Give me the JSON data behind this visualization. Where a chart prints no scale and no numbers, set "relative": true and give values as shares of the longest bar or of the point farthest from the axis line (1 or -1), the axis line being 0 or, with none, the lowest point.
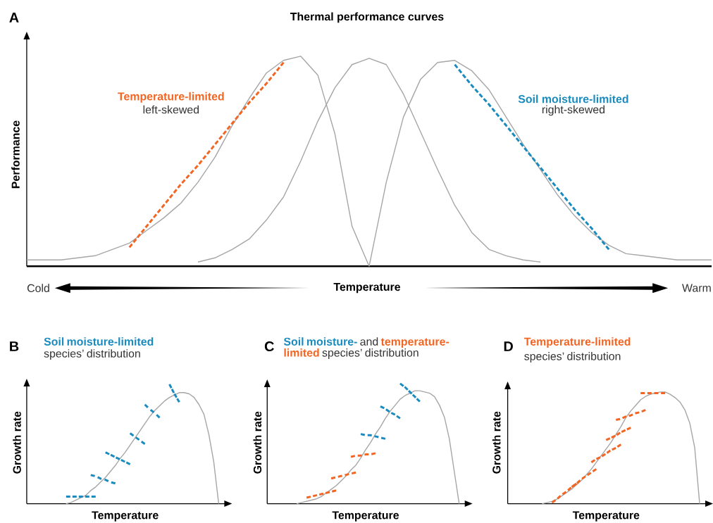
{
  "chart_data": [
    {
      "type": "line",
      "relative": true,
      "title": "Thermal performance curves",
      "xlabel": "Temperature",
      "ylabel": "Performance",
      "annotations": [
        "A",
        "Cold",
        "Warm",
        "left-skewed",
        "right-skewed"
      ],
      "categories": [
        null,
        null,
        null,
        null,
        null,
        null,
        null,
        null,
        null,
        null,
        null,
        null,
        null,
        null,
        null,
        null,
        null,
        null,
        null,
        null,
        null,
        null,
        null,
        null,
        null,
        null,
        null,
        null,
        null,
        null,
        null,
        null,
        null,
        null,
        null,
        null,
        null,
        null,
        null,
        null,
        null
      ],
      "series": [
        {
          "color": "#a6a6a6",
          "values": [
            0.03,
            0.03,
            0.03,
            0.04,
            0.05,
            0.08,
            0.11,
            0.17,
            0.23,
            0.3,
            0.4,
            0.52,
            0.67,
            0.8,
            0.92,
            0.98,
            1.0,
            0.91,
            0.63,
            0.19,
            0,
            null,
            null,
            null,
            null,
            null,
            null,
            null,
            null,
            null,
            null,
            null,
            null,
            null,
            null,
            null,
            null,
            null,
            null,
            null,
            null
          ]
        },
        {
          "color": "#a6a6a6",
          "values": [
            null,
            null,
            null,
            null,
            null,
            null,
            null,
            null,
            null,
            null,
            0.02,
            0.04,
            0.08,
            0.13,
            0.22,
            0.33,
            0.5,
            0.69,
            0.85,
            0.96,
            0.99,
            0.96,
            0.82,
            0.64,
            0.46,
            0.29,
            0.16,
            0.08,
            0.05,
            0.03,
            0.02,
            null,
            null,
            null,
            null,
            null,
            null,
            null,
            null,
            null,
            null
          ]
        },
        {
          "color": "#a6a6a6",
          "values": [
            null,
            null,
            null,
            null,
            null,
            null,
            null,
            null,
            null,
            null,
            null,
            null,
            null,
            null,
            null,
            null,
            null,
            null,
            null,
            null,
            0,
            0.4,
            0.71,
            0.89,
            0.97,
            0.98,
            0.93,
            0.84,
            0.71,
            0.58,
            0.46,
            0.34,
            0.24,
            0.16,
            0.1,
            0.06,
            0.05,
            0.04,
            0.03,
            0.03,
            0.03
          ]
        },
        {
          "name": "Temperature-limited",
          "color": "#f26522",
          "line_style": "dashed",
          "values": [
            null,
            null,
            null,
            null,
            null,
            null,
            0.09,
            0.19,
            0.29,
            0.39,
            0.48,
            0.58,
            0.68,
            0.78,
            0.87,
            0.97,
            null,
            null,
            null,
            null,
            null,
            null,
            null,
            null,
            null,
            null,
            null,
            null,
            null,
            null,
            null,
            null,
            null,
            null,
            null,
            null,
            null,
            null,
            null,
            null,
            null
          ]
        },
        {
          "name": "Soil moisture-limited",
          "color": "#1a8bbf",
          "line_style": "dashed",
          "values": [
            null,
            null,
            null,
            null,
            null,
            null,
            null,
            null,
            null,
            null,
            null,
            null,
            null,
            null,
            null,
            null,
            null,
            null,
            null,
            null,
            null,
            null,
            null,
            null,
            null,
            0.96,
            0.86,
            0.77,
            0.67,
            0.57,
            0.47,
            0.37,
            0.27,
            0.18,
            0.08,
            null,
            null,
            null,
            null,
            null,
            null
          ]
        }
      ]
    },
    {
      "type": "line",
      "relative": true,
      "subtitle": "species’ distribution",
      "xlabel": "Temperature",
      "ylabel": "Growth rate",
      "annotations": [
        "B"
      ],
      "categories": [
        null,
        null,
        null,
        null,
        null,
        null,
        null,
        null,
        null,
        null,
        null,
        null,
        null,
        null,
        null,
        null,
        null,
        null,
        null,
        null,
        null,
        null,
        null,
        null,
        null,
        null,
        null,
        null,
        null,
        null,
        null,
        null,
        null,
        null,
        null,
        null,
        null,
        null,
        null,
        null,
        null
      ],
      "series": [
        {
          "color": "#a6a6a6",
          "values": [
            null,
            null,
            null,
            null,
            null,
            null,
            null,
            null,
            0,
            0.01,
            0.03,
            0.05,
            0.07,
            0.11,
            0.14,
            0.18,
            0.22,
            0.27,
            0.32,
            0.38,
            0.43,
            0.49,
            0.55,
            0.61,
            0.67,
            0.73,
            0.78,
            0.82,
            0.86,
            0.89,
            0.91,
            0.93,
            0.93,
            0.92,
            0.89,
            0.83,
            0.75,
            0.58,
            0.35,
            0,
            null
          ]
        },
        {
          "name": "Soil moisture-limited",
          "color": "#1a8bbf",
          "line_style": "dashed",
          "values": [
            null,
            null,
            null,
            null,
            null,
            null,
            null,
            null,
            0.06,
            0.06,
            0.06,
            0.06,
            0.06,
            0.06,
            0.06,
            null,
            null,
            null,
            null,
            null,
            null,
            null,
            null,
            null,
            null,
            null,
            null,
            null,
            null,
            null,
            null,
            null,
            null,
            null,
            null,
            null,
            null,
            null,
            null,
            null,
            null
          ]
        },
        {
          "color": "#1a8bbf",
          "line_style": "dashed",
          "values": [
            null,
            null,
            null,
            null,
            null,
            null,
            null,
            null,
            null,
            null,
            null,
            null,
            null,
            0.24,
            0.23,
            0.21,
            0.2,
            0.18,
            0.17,
            null,
            null,
            null,
            null,
            null,
            null,
            null,
            null,
            null,
            null,
            null,
            null,
            null,
            null,
            null,
            null,
            null,
            null,
            null,
            null,
            null,
            null
          ]
        },
        {
          "color": "#1a8bbf",
          "line_style": "dashed",
          "values": [
            null,
            null,
            null,
            null,
            null,
            null,
            null,
            null,
            null,
            null,
            null,
            null,
            null,
            null,
            null,
            null,
            0.43,
            0.41,
            0.39,
            0.37,
            0.35,
            0.33,
            null,
            null,
            null,
            null,
            null,
            null,
            null,
            null,
            null,
            null,
            null,
            null,
            null,
            null,
            null,
            null,
            null,
            null,
            null
          ]
        },
        {
          "color": "#1a8bbf",
          "line_style": "dashed",
          "values": [
            null,
            null,
            null,
            null,
            null,
            null,
            null,
            null,
            null,
            null,
            null,
            null,
            null,
            null,
            null,
            null,
            null,
            null,
            null,
            null,
            null,
            0.59,
            0.56,
            0.53,
            0.5,
            null,
            null,
            null,
            null,
            null,
            null,
            null,
            null,
            null,
            null,
            null,
            null,
            null,
            null,
            null,
            null
          ]
        },
        {
          "color": "#1a8bbf",
          "line_style": "dashed",
          "values": [
            null,
            null,
            null,
            null,
            null,
            null,
            null,
            null,
            null,
            null,
            null,
            null,
            null,
            null,
            null,
            null,
            null,
            null,
            null,
            null,
            null,
            null,
            null,
            null,
            0.83,
            0.79,
            0.76,
            0.72,
            null,
            null,
            null,
            null,
            null,
            null,
            null,
            null,
            null,
            null,
            null,
            null,
            null
          ]
        },
        {
          "color": "#1a8bbf",
          "line_style": "dashed",
          "values": [
            null,
            null,
            null,
            null,
            null,
            null,
            null,
            null,
            null,
            null,
            null,
            null,
            null,
            null,
            null,
            null,
            null,
            null,
            null,
            null,
            null,
            null,
            null,
            null,
            null,
            null,
            null,
            null,
            null,
            1.0,
            0.92,
            0.85,
            null,
            null,
            null,
            null,
            null,
            null,
            null,
            null,
            null
          ]
        }
      ]
    },
    {
      "type": "line",
      "relative": true,
      "subtitle": "species’ distribution",
      "xlabel": "Temperature",
      "ylabel": "Growth rate",
      "annotations": [
        "C",
        "and"
      ],
      "categories": [
        null,
        null,
        null,
        null,
        null,
        null,
        null,
        null,
        null,
        null,
        null,
        null,
        null,
        null,
        null,
        null,
        null,
        null,
        null,
        null,
        null,
        null,
        null,
        null,
        null,
        null,
        null,
        null,
        null,
        null,
        null,
        null,
        null,
        null,
        null,
        null,
        null,
        null,
        null,
        null,
        null
      ],
      "series": [
        {
          "color": "#a6a6a6",
          "values": [
            null,
            null,
            null,
            null,
            null,
            null,
            0,
            0.01,
            0.02,
            0.03,
            0.04,
            0.06,
            0.09,
            0.12,
            0.15,
            0.19,
            0.23,
            0.28,
            0.32,
            0.38,
            0.45,
            0.51,
            0.58,
            0.64,
            0.71,
            0.77,
            0.82,
            0.87,
            0.9,
            0.92,
            0.94,
            0.94,
            0.93,
            0.92,
            0.89,
            0.82,
            0.72,
            0.54,
            0.27,
            0,
            null
          ]
        },
        {
          "name": "Soil moisture-",
          "color": "#1a8bbf",
          "line_style": "dashed",
          "values": [
            null,
            null,
            null,
            null,
            null,
            null,
            null,
            null,
            null,
            null,
            null,
            null,
            null,
            null,
            null,
            null,
            null,
            null,
            null,
            0.58,
            0.57,
            0.57,
            0.56,
            0.55,
            0.54,
            null,
            null,
            null,
            null,
            null,
            null,
            null,
            null,
            null,
            null,
            null,
            null,
            null,
            null,
            null,
            null
          ]
        },
        {
          "color": "#1a8bbf",
          "line_style": "dashed",
          "values": [
            null,
            null,
            null,
            null,
            null,
            null,
            null,
            null,
            null,
            null,
            null,
            null,
            null,
            null,
            null,
            null,
            null,
            null,
            null,
            null,
            null,
            null,
            null,
            0.81,
            0.79,
            0.76,
            0.74,
            0.71,
            null,
            null,
            null,
            null,
            null,
            null,
            null,
            null,
            null,
            null,
            null,
            null,
            null
          ]
        },
        {
          "color": "#1a8bbf",
          "line_style": "dashed",
          "values": [
            null,
            null,
            null,
            null,
            null,
            null,
            null,
            null,
            null,
            null,
            null,
            null,
            null,
            null,
            null,
            null,
            null,
            null,
            null,
            null,
            null,
            null,
            null,
            null,
            null,
            null,
            null,
            1.0,
            0.97,
            0.93,
            0.89,
            0.85,
            null,
            null,
            null,
            null,
            null,
            null,
            null,
            null,
            null
          ]
        },
        {
          "name": "temperature-limited",
          "color": "#f26522",
          "line_style": "dashed",
          "values": [
            null,
            null,
            null,
            null,
            null,
            null,
            null,
            null,
            0.05,
            0.06,
            0.07,
            0.08,
            0.09,
            0.1,
            0.11,
            null,
            null,
            null,
            null,
            null,
            null,
            null,
            null,
            null,
            null,
            null,
            null,
            null,
            null,
            null,
            null,
            null,
            null,
            null,
            null,
            null,
            null,
            null,
            null,
            null,
            null
          ]
        },
        {
          "color": "#f26522",
          "line_style": "dashed",
          "values": [
            null,
            null,
            null,
            null,
            null,
            null,
            null,
            null,
            null,
            null,
            null,
            null,
            null,
            0.21,
            0.22,
            0.23,
            0.24,
            0.25,
            0.26,
            null,
            null,
            null,
            null,
            null,
            null,
            null,
            null,
            null,
            null,
            null,
            null,
            null,
            null,
            null,
            null,
            null,
            null,
            null,
            null,
            null,
            null
          ]
        },
        {
          "color": "#f26522",
          "line_style": "dashed",
          "values": [
            null,
            null,
            null,
            null,
            null,
            null,
            null,
            null,
            null,
            null,
            null,
            null,
            null,
            null,
            null,
            null,
            null,
            0.39,
            0.4,
            0.4,
            0.41,
            0.41,
            0.42,
            null,
            null,
            null,
            null,
            null,
            null,
            null,
            null,
            null,
            null,
            null,
            null,
            null,
            null,
            null,
            null,
            null,
            null
          ]
        }
      ]
    },
    {
      "type": "line",
      "relative": true,
      "subtitle": "species’ distribution",
      "xlabel": "Temperature",
      "ylabel": "Growth rate",
      "annotations": [
        "D"
      ],
      "categories": [
        null,
        null,
        null,
        null,
        null,
        null,
        null,
        null,
        null,
        null,
        null,
        null,
        null,
        null,
        null,
        null,
        null,
        null,
        null,
        null,
        null,
        null,
        null,
        null,
        null,
        null,
        null,
        null,
        null,
        null,
        null,
        null,
        null,
        null,
        null,
        null,
        null,
        null,
        null,
        null,
        null
      ],
      "series": [
        {
          "color": "#a6a6a6",
          "values": [
            null,
            null,
            null,
            null,
            null,
            null,
            null,
            0,
            0.01,
            0.02,
            0.04,
            0.07,
            0.1,
            0.13,
            0.17,
            0.21,
            0.26,
            0.31,
            0.37,
            0.43,
            0.49,
            0.55,
            0.62,
            0.69,
            0.77,
            0.83,
            0.88,
            0.93,
            0.96,
            0.98,
            0.99,
            1.0,
            1.0,
            0.98,
            0.95,
            0.91,
            0.84,
            0.72,
            0.5,
            0,
            null
          ]
        },
        {
          "name": "Temperature-limited",
          "color": "#f26522",
          "line_style": "dashed",
          "values": [
            null,
            null,
            null,
            null,
            null,
            null,
            null,
            null,
            null,
            0.01,
            0.04,
            0.08,
            0.11,
            0.15,
            0.18,
            null,
            null,
            null,
            null,
            null,
            null,
            null,
            null,
            null,
            null,
            null,
            null,
            null,
            null,
            null,
            null,
            null,
            null,
            null,
            null,
            null,
            null,
            null,
            null,
            null,
            null
          ]
        },
        {
          "color": "#f26522",
          "line_style": "dashed",
          "values": [
            null,
            null,
            null,
            null,
            null,
            null,
            null,
            null,
            null,
            null,
            null,
            null,
            null,
            0.15,
            0.18,
            0.22,
            0.25,
            0.28,
            0.31,
            null,
            null,
            null,
            null,
            null,
            null,
            null,
            null,
            null,
            null,
            null,
            null,
            null,
            null,
            null,
            null,
            null,
            null,
            null,
            null,
            null,
            null
          ]
        },
        {
          "color": "#f26522",
          "line_style": "dashed",
          "values": [
            null,
            null,
            null,
            null,
            null,
            null,
            null,
            null,
            null,
            null,
            null,
            null,
            null,
            null,
            null,
            null,
            null,
            0.37,
            0.4,
            0.42,
            0.45,
            0.48,
            0.5,
            0.53,
            null,
            null,
            null,
            null,
            null,
            null,
            null,
            null,
            null,
            null,
            null,
            null,
            null,
            null,
            null,
            null,
            null
          ]
        },
        {
          "color": "#f26522",
          "line_style": "dashed",
          "values": [
            null,
            null,
            null,
            null,
            null,
            null,
            null,
            null,
            null,
            null,
            null,
            null,
            null,
            null,
            null,
            null,
            null,
            null,
            null,
            null,
            0.57,
            0.59,
            0.61,
            0.64,
            0.66,
            0.68,
            null,
            null,
            null,
            null,
            null,
            null,
            null,
            null,
            null,
            null,
            null,
            null,
            null,
            null,
            null
          ]
        },
        {
          "color": "#f26522",
          "line_style": "dashed",
          "values": [
            null,
            null,
            null,
            null,
            null,
            null,
            null,
            null,
            null,
            null,
            null,
            null,
            null,
            null,
            null,
            null,
            null,
            null,
            null,
            null,
            null,
            null,
            0.75,
            0.76,
            0.78,
            0.79,
            0.81,
            0.82,
            0.84,
            null,
            null,
            null,
            null,
            null,
            null,
            null,
            null,
            null,
            null,
            null,
            null
          ]
        },
        {
          "color": "#f26522",
          "line_style": "dashed",
          "values": [
            null,
            null,
            null,
            null,
            null,
            null,
            null,
            null,
            null,
            null,
            null,
            null,
            null,
            null,
            null,
            null,
            null,
            null,
            null,
            null,
            null,
            null,
            null,
            null,
            null,
            null,
            null,
            0.99,
            0.99,
            0.99,
            0.99,
            0.99,
            0.99,
            null,
            null,
            null,
            null,
            null,
            null,
            null,
            null
          ]
        }
      ]
    }
  ]
}
